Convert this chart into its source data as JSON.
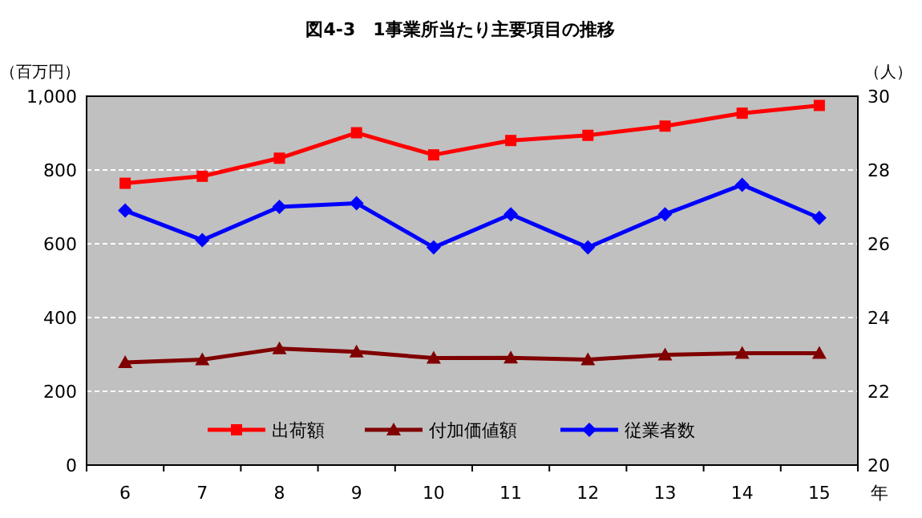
{
  "chart_data": {
    "type": "line",
    "title": "図4-3　1事業所当たり主要項目の推移",
    "xlabel": "年",
    "ylabel": "（百万円）",
    "y2label": "（人）",
    "categories": [
      "6",
      "7",
      "8",
      "9",
      "10",
      "11",
      "12",
      "13",
      "14",
      "15"
    ],
    "series": [
      {
        "name": "出荷額",
        "color": "#ff0000",
        "marker": "square",
        "values": [
          764,
          783,
          832,
          901,
          841,
          880,
          894,
          919,
          954,
          975
        ]
      },
      {
        "name": "付加価値額",
        "color": "#800000",
        "marker": "triangle",
        "values": [
          278,
          286,
          316,
          307,
          290,
          291,
          286,
          299,
          303,
          303
        ]
      },
      {
        "name": "従業者数",
        "color": "#0000ff",
        "marker": "diamond",
        "axis": "y2",
        "values": [
          26.9,
          26.1,
          27.0,
          27.1,
          25.9,
          26.8,
          25.9,
          26.8,
          27.6,
          26.7
        ]
      }
    ],
    "ylim": [
      0,
      1000
    ],
    "yticks": [
      0,
      200,
      400,
      600,
      800,
      {
        "value": 1000,
        "label": "1,000"
      }
    ],
    "y2lim": [
      20,
      30
    ],
    "y2ticks": [
      20,
      22,
      24,
      26,
      28,
      30
    ],
    "grid": "y",
    "legend": "bottom"
  }
}
